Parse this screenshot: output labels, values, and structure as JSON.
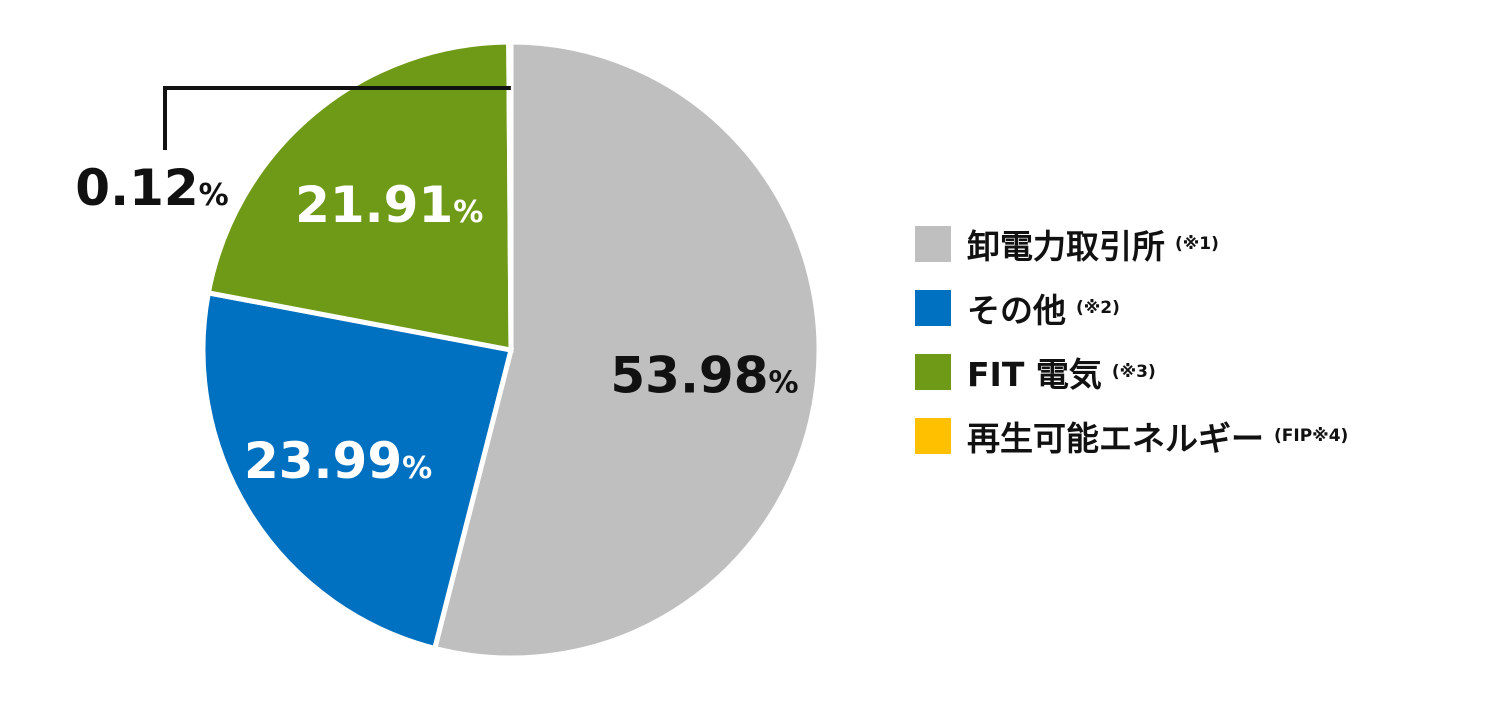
{
  "chart_data": {
    "type": "pie",
    "slices": [
      {
        "label": "卸電力取引所",
        "note": "(※1)",
        "value": 53.98,
        "color": "#bfbfbf",
        "display": "53.98",
        "text_color": "#111111"
      },
      {
        "label": "その他",
        "note": "(※2)",
        "value": 23.99,
        "color": "#0070c0",
        "display": "23.99",
        "text_color": "#ffffff"
      },
      {
        "label": "FIT 電気",
        "note": "(※3)",
        "value": 21.91,
        "color": "#6f9a18",
        "display": "21.91",
        "text_color": "#ffffff"
      },
      {
        "label": "再生可能エネルギー",
        "note": "(FIP※4)",
        "value": 0.12,
        "color": "#ffc000",
        "display": "0.12",
        "text_color": "#111111"
      }
    ],
    "unit": "%",
    "legend_position": "right"
  }
}
